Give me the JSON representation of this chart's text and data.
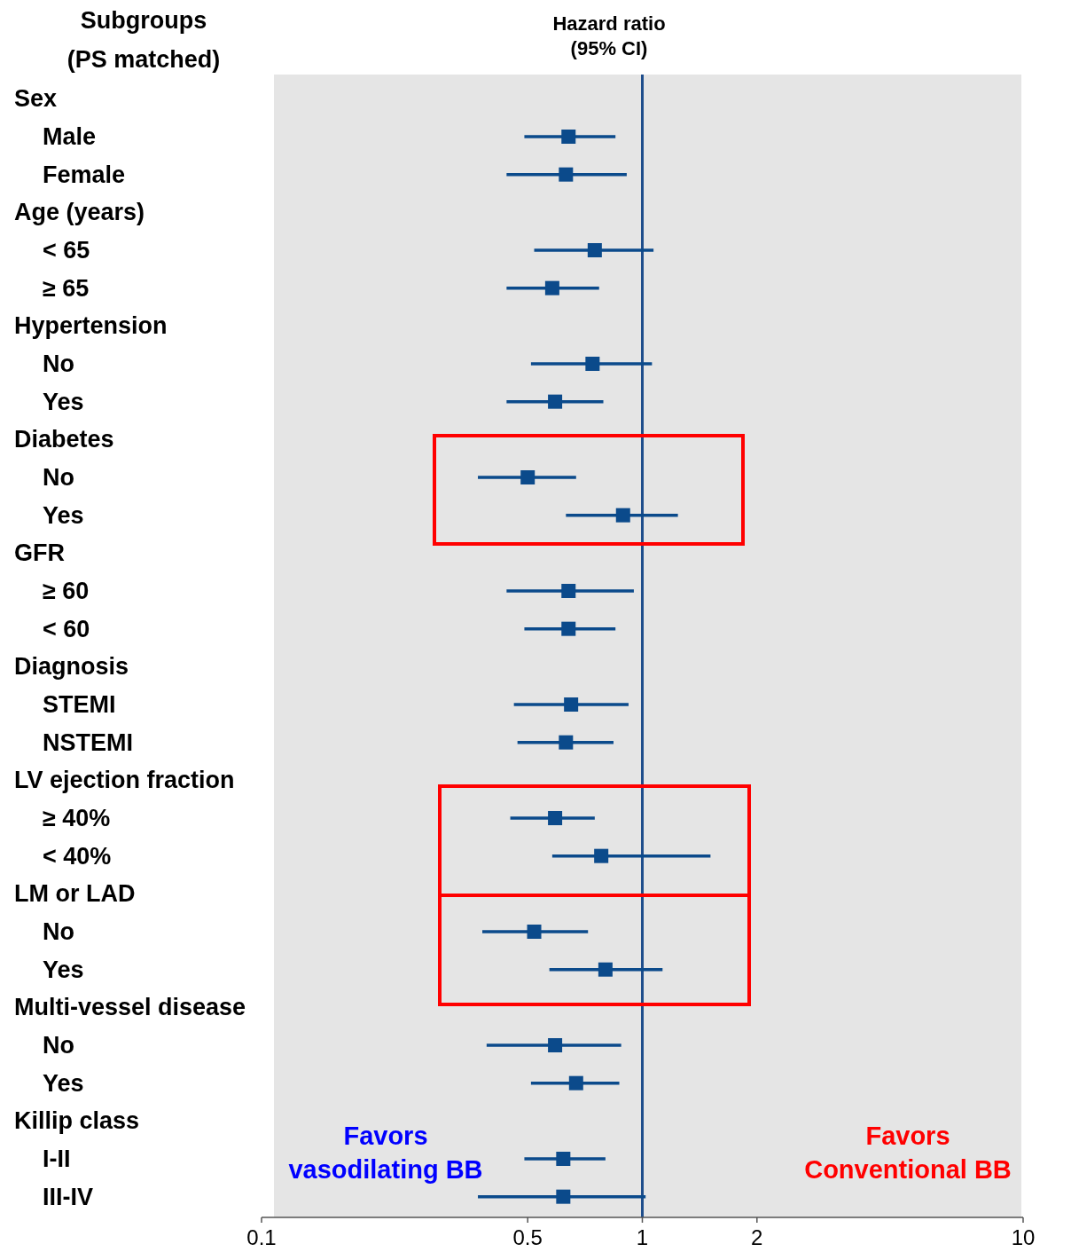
{
  "chart_data": {
    "type": "scatter",
    "orientation": "horizontal",
    "title": "Subgroups\n(PS matched)",
    "xlabel": "Hazard ratio\n(95% CI)",
    "categories": [
      null,
      "Male",
      "Female",
      null,
      "< 65",
      "≥ 65",
      null,
      "No",
      "Yes",
      null,
      "No",
      "Yes",
      null,
      "≥  60",
      "< 60",
      null,
      "STEMI",
      "NSTEMI",
      null,
      "≥ 40%",
      "< 40%",
      null,
      "No",
      "Yes",
      null,
      "No",
      "Yes",
      null,
      "I-II",
      "III-IV"
    ],
    "values": [
      null,
      0.64,
      0.63,
      null,
      0.75,
      0.58,
      null,
      0.74,
      0.59,
      null,
      0.5,
      0.89,
      null,
      0.64,
      0.64,
      null,
      0.65,
      0.63,
      null,
      0.59,
      0.78,
      null,
      0.52,
      0.8,
      null,
      0.59,
      0.67,
      null,
      0.62,
      0.62
    ],
    "errors": [
      null,
      [
        0.49,
        0.85
      ],
      [
        0.44,
        0.91
      ],
      null,
      [
        0.52,
        1.07
      ],
      [
        0.44,
        0.77
      ],
      null,
      [
        0.51,
        1.06
      ],
      [
        0.44,
        0.79
      ],
      null,
      [
        0.37,
        0.67
      ],
      [
        0.63,
        1.24
      ],
      null,
      [
        0.44,
        0.95
      ],
      [
        0.49,
        0.85
      ],
      null,
      [
        0.46,
        0.92
      ],
      [
        0.47,
        0.84
      ],
      null,
      [
        0.45,
        0.75
      ],
      [
        0.58,
        1.51
      ],
      null,
      [
        0.38,
        0.72
      ],
      [
        0.57,
        1.13
      ],
      null,
      [
        0.39,
        0.88
      ],
      [
        0.51,
        0.87
      ],
      null,
      [
        0.49,
        0.8
      ],
      [
        0.37,
        1.02
      ]
    ],
    "color": "#0b4a8b",
    "marker": "square",
    "log": "x",
    "xlim": [
      0.1,
      10
    ],
    "xticks": [
      0.1,
      0.5,
      1,
      2,
      10
    ],
    "ref_lines": [
      {
        "axis": "x",
        "value": 1,
        "color": "#1f4e8c"
      }
    ],
    "annotations": [
      "Favors vasodilating BB",
      "Favors Conventional BB",
      "Sex",
      "Age (years)",
      "Hypertension",
      "Diabetes",
      "GFR",
      "Diagnosis",
      "LV ejection fraction",
      "LM or LAD",
      "Multi-vessel disease",
      "Killip class"
    ]
  }
}
